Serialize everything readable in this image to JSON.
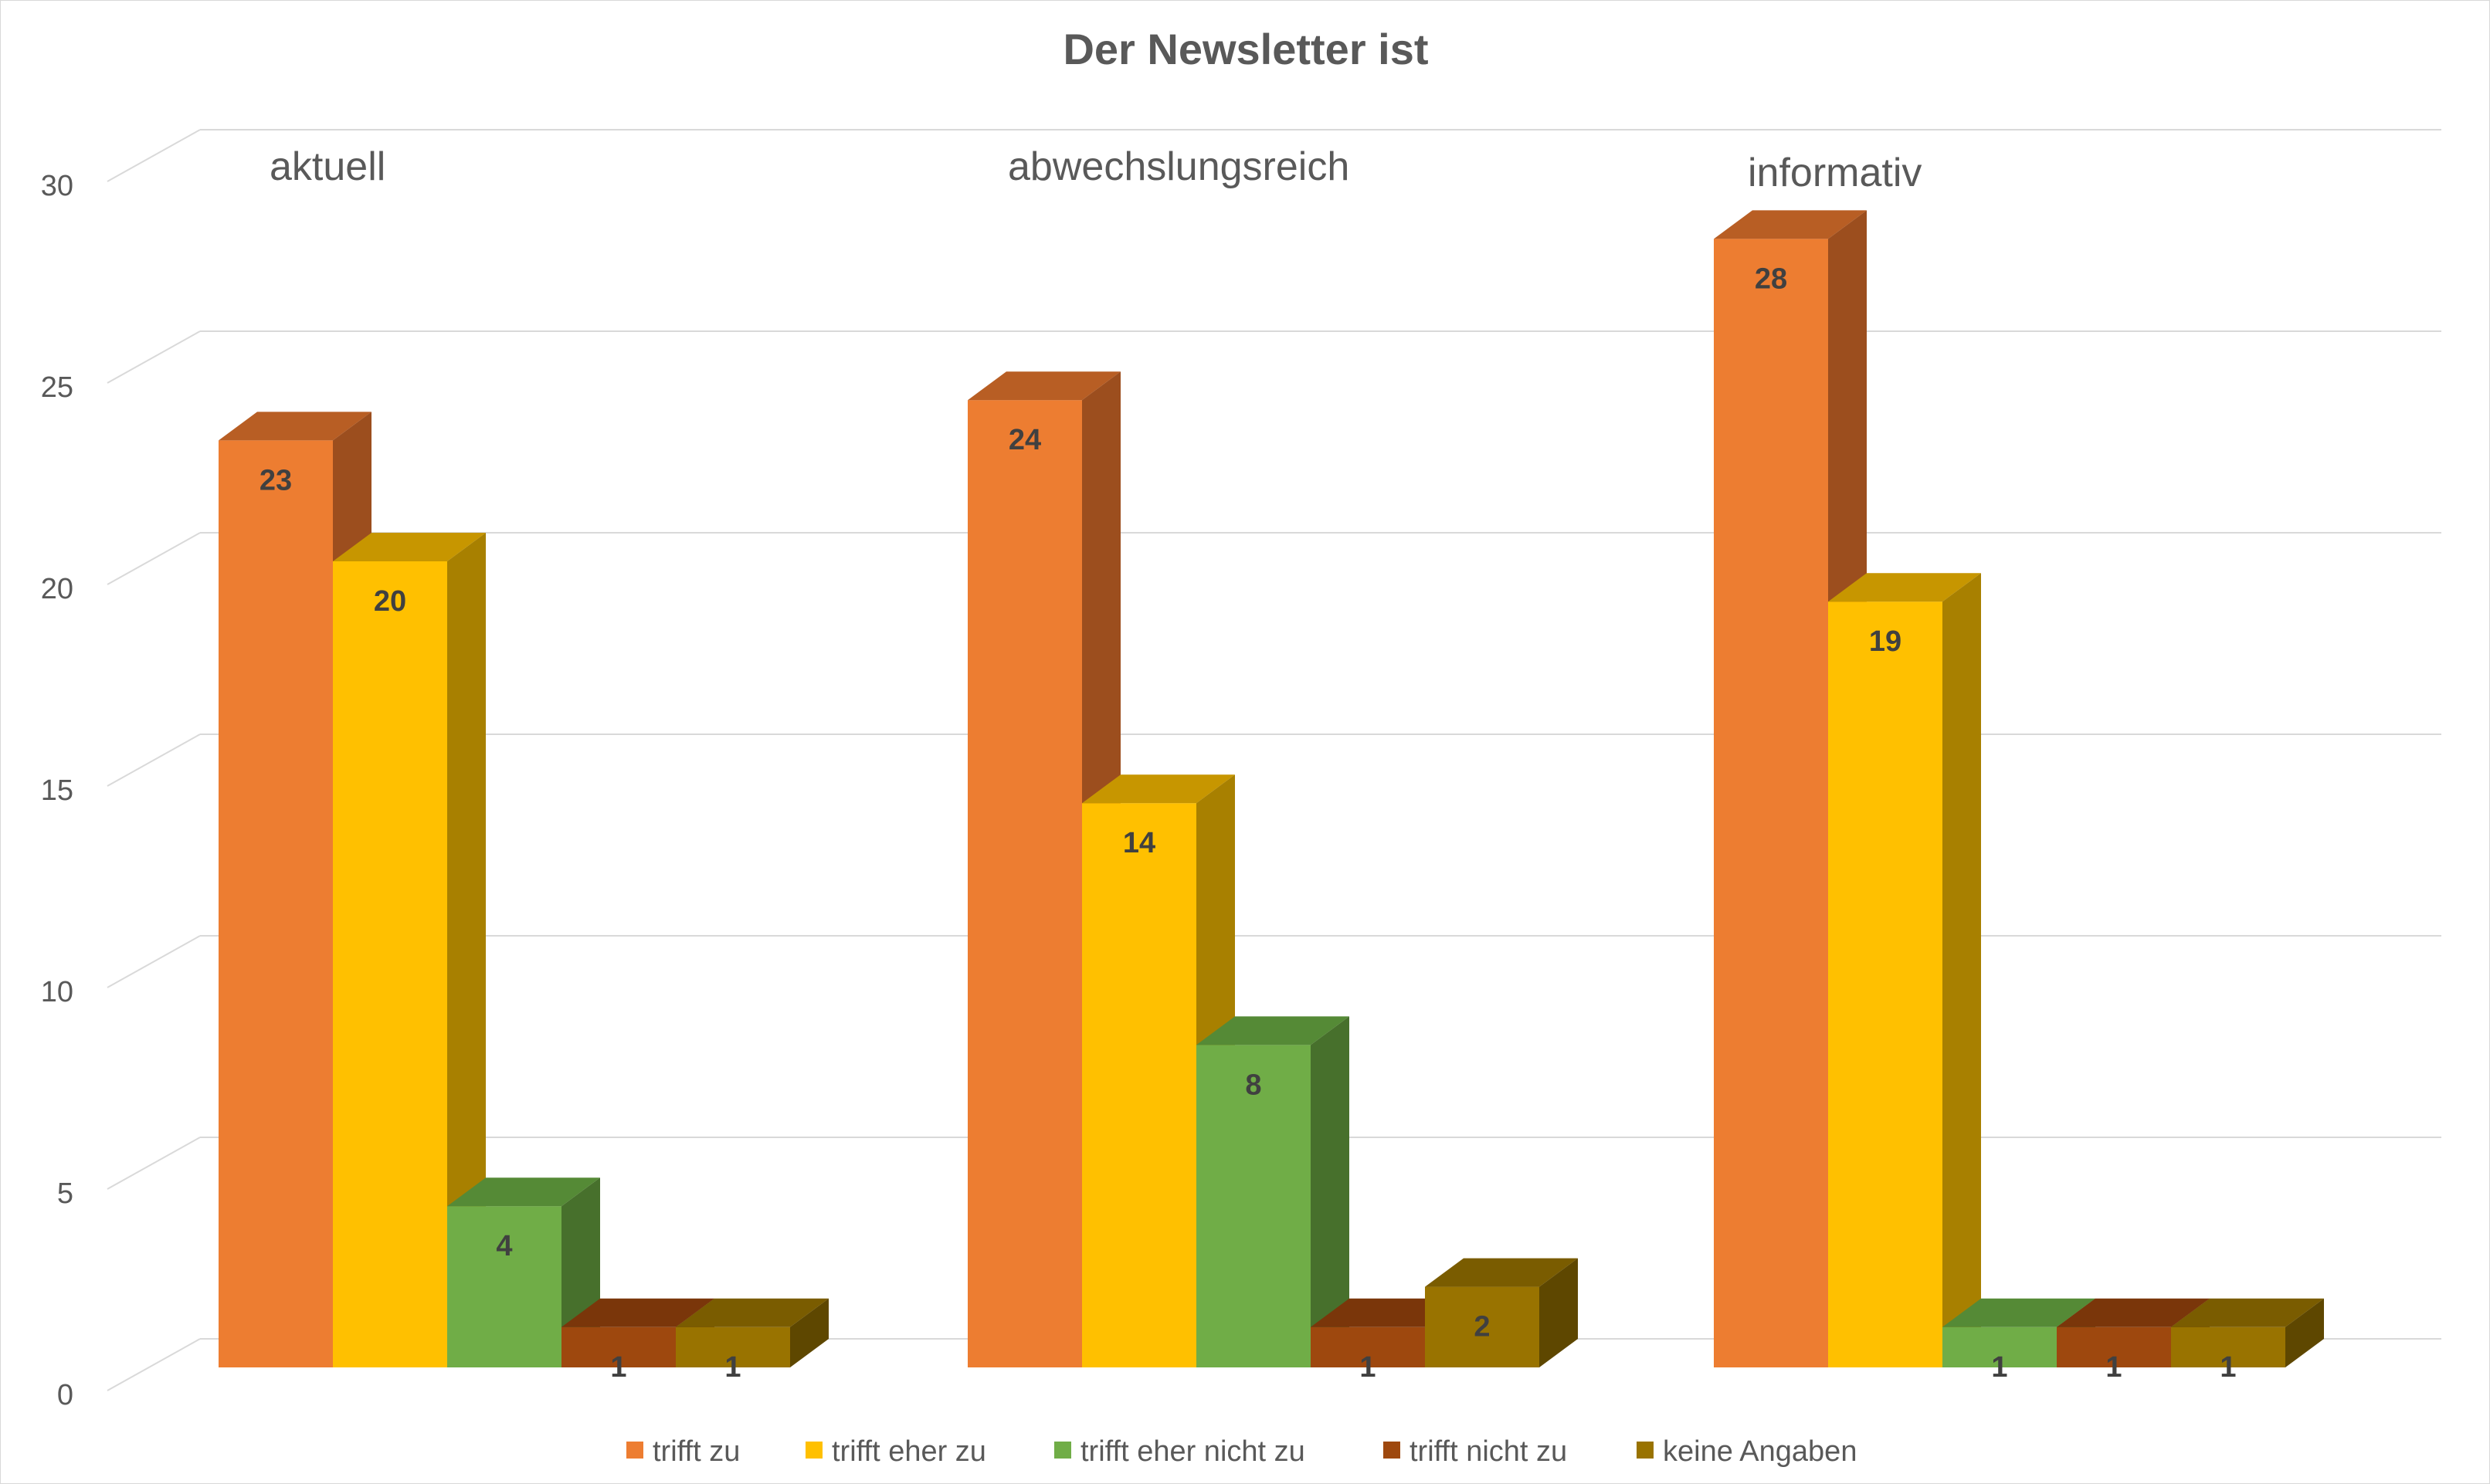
{
  "chart_data": {
    "type": "bar",
    "title": "Der Newsletter ist",
    "categories": [
      "aktuell",
      "abwechslungsreich",
      "informativ"
    ],
    "series": [
      {
        "name": "trifft zu",
        "color": "#ED7D31",
        "top_color": "#B85E24",
        "side_color": "#9C4E1E",
        "values": [
          23,
          24,
          28
        ]
      },
      {
        "name": "trifft eher zu",
        "color": "#FFC000",
        "top_color": "#C79600",
        "side_color": "#A88000",
        "values": [
          20,
          14,
          19
        ]
      },
      {
        "name": "trifft eher nicht zu",
        "color": "#70AD47",
        "top_color": "#558A36",
        "side_color": "#47702C",
        "values": [
          4,
          8,
          1
        ]
      },
      {
        "name": "trifft nicht zu",
        "color": "#9E480E",
        "top_color": "#7A360A",
        "side_color": "#6A2F08",
        "values": [
          1,
          1,
          1
        ]
      },
      {
        "name": "keine Angaben",
        "color": "#997300",
        "top_color": "#7A5C00",
        "side_color": "#5E4700",
        "values": [
          1,
          2,
          1
        ]
      }
    ],
    "y_ticks": [
      0,
      5,
      10,
      15,
      20,
      25,
      30
    ],
    "ylim": [
      0,
      30
    ],
    "grid": true,
    "legend_position": "bottom",
    "data_labels": true
  }
}
